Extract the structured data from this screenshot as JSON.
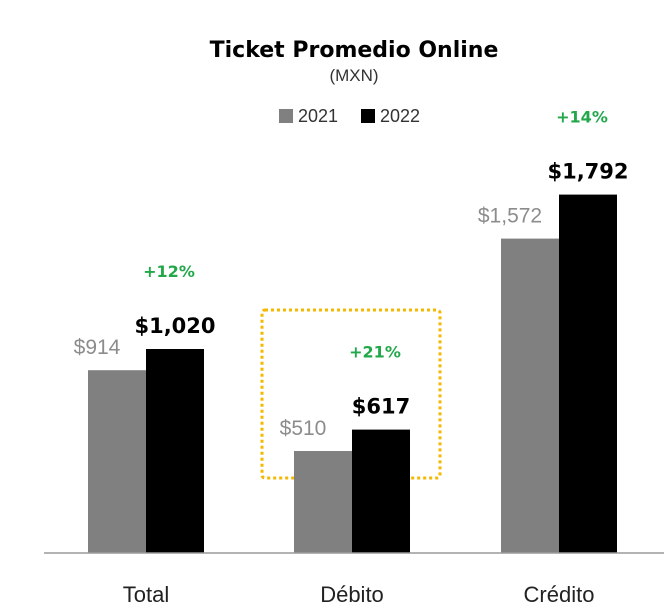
{
  "chart_data": {
    "type": "bar",
    "title": "Ticket Promedio Online",
    "subtitle": "(MXN)",
    "categories": [
      "Total",
      "Débito",
      "Crédito"
    ],
    "series": [
      {
        "name": "2021",
        "values": [
          914,
          510,
          1572
        ],
        "labels": [
          "$914",
          "$510",
          "$1,572"
        ]
      },
      {
        "name": "2022",
        "values": [
          1020,
          617,
          1792
        ],
        "labels": [
          "$1,020",
          "$617",
          "$1,792"
        ]
      }
    ],
    "growth_labels": [
      "+12%",
      "+21%",
      "+14%"
    ],
    "highlight_category": "Débito",
    "ylim": [
      0,
      2000
    ],
    "xlabel": "",
    "ylabel": "",
    "legend_position": "top-center",
    "grid": false,
    "colors": {
      "series_2021": "#808080",
      "series_2022": "#000000",
      "label_2021": "#8c8c8c",
      "label_2022": "#000000",
      "growth": "#22a84a",
      "highlight_box": "#f5b800",
      "axis": "#9a9a9a",
      "category_text": "#222222",
      "title": "#000000"
    }
  }
}
